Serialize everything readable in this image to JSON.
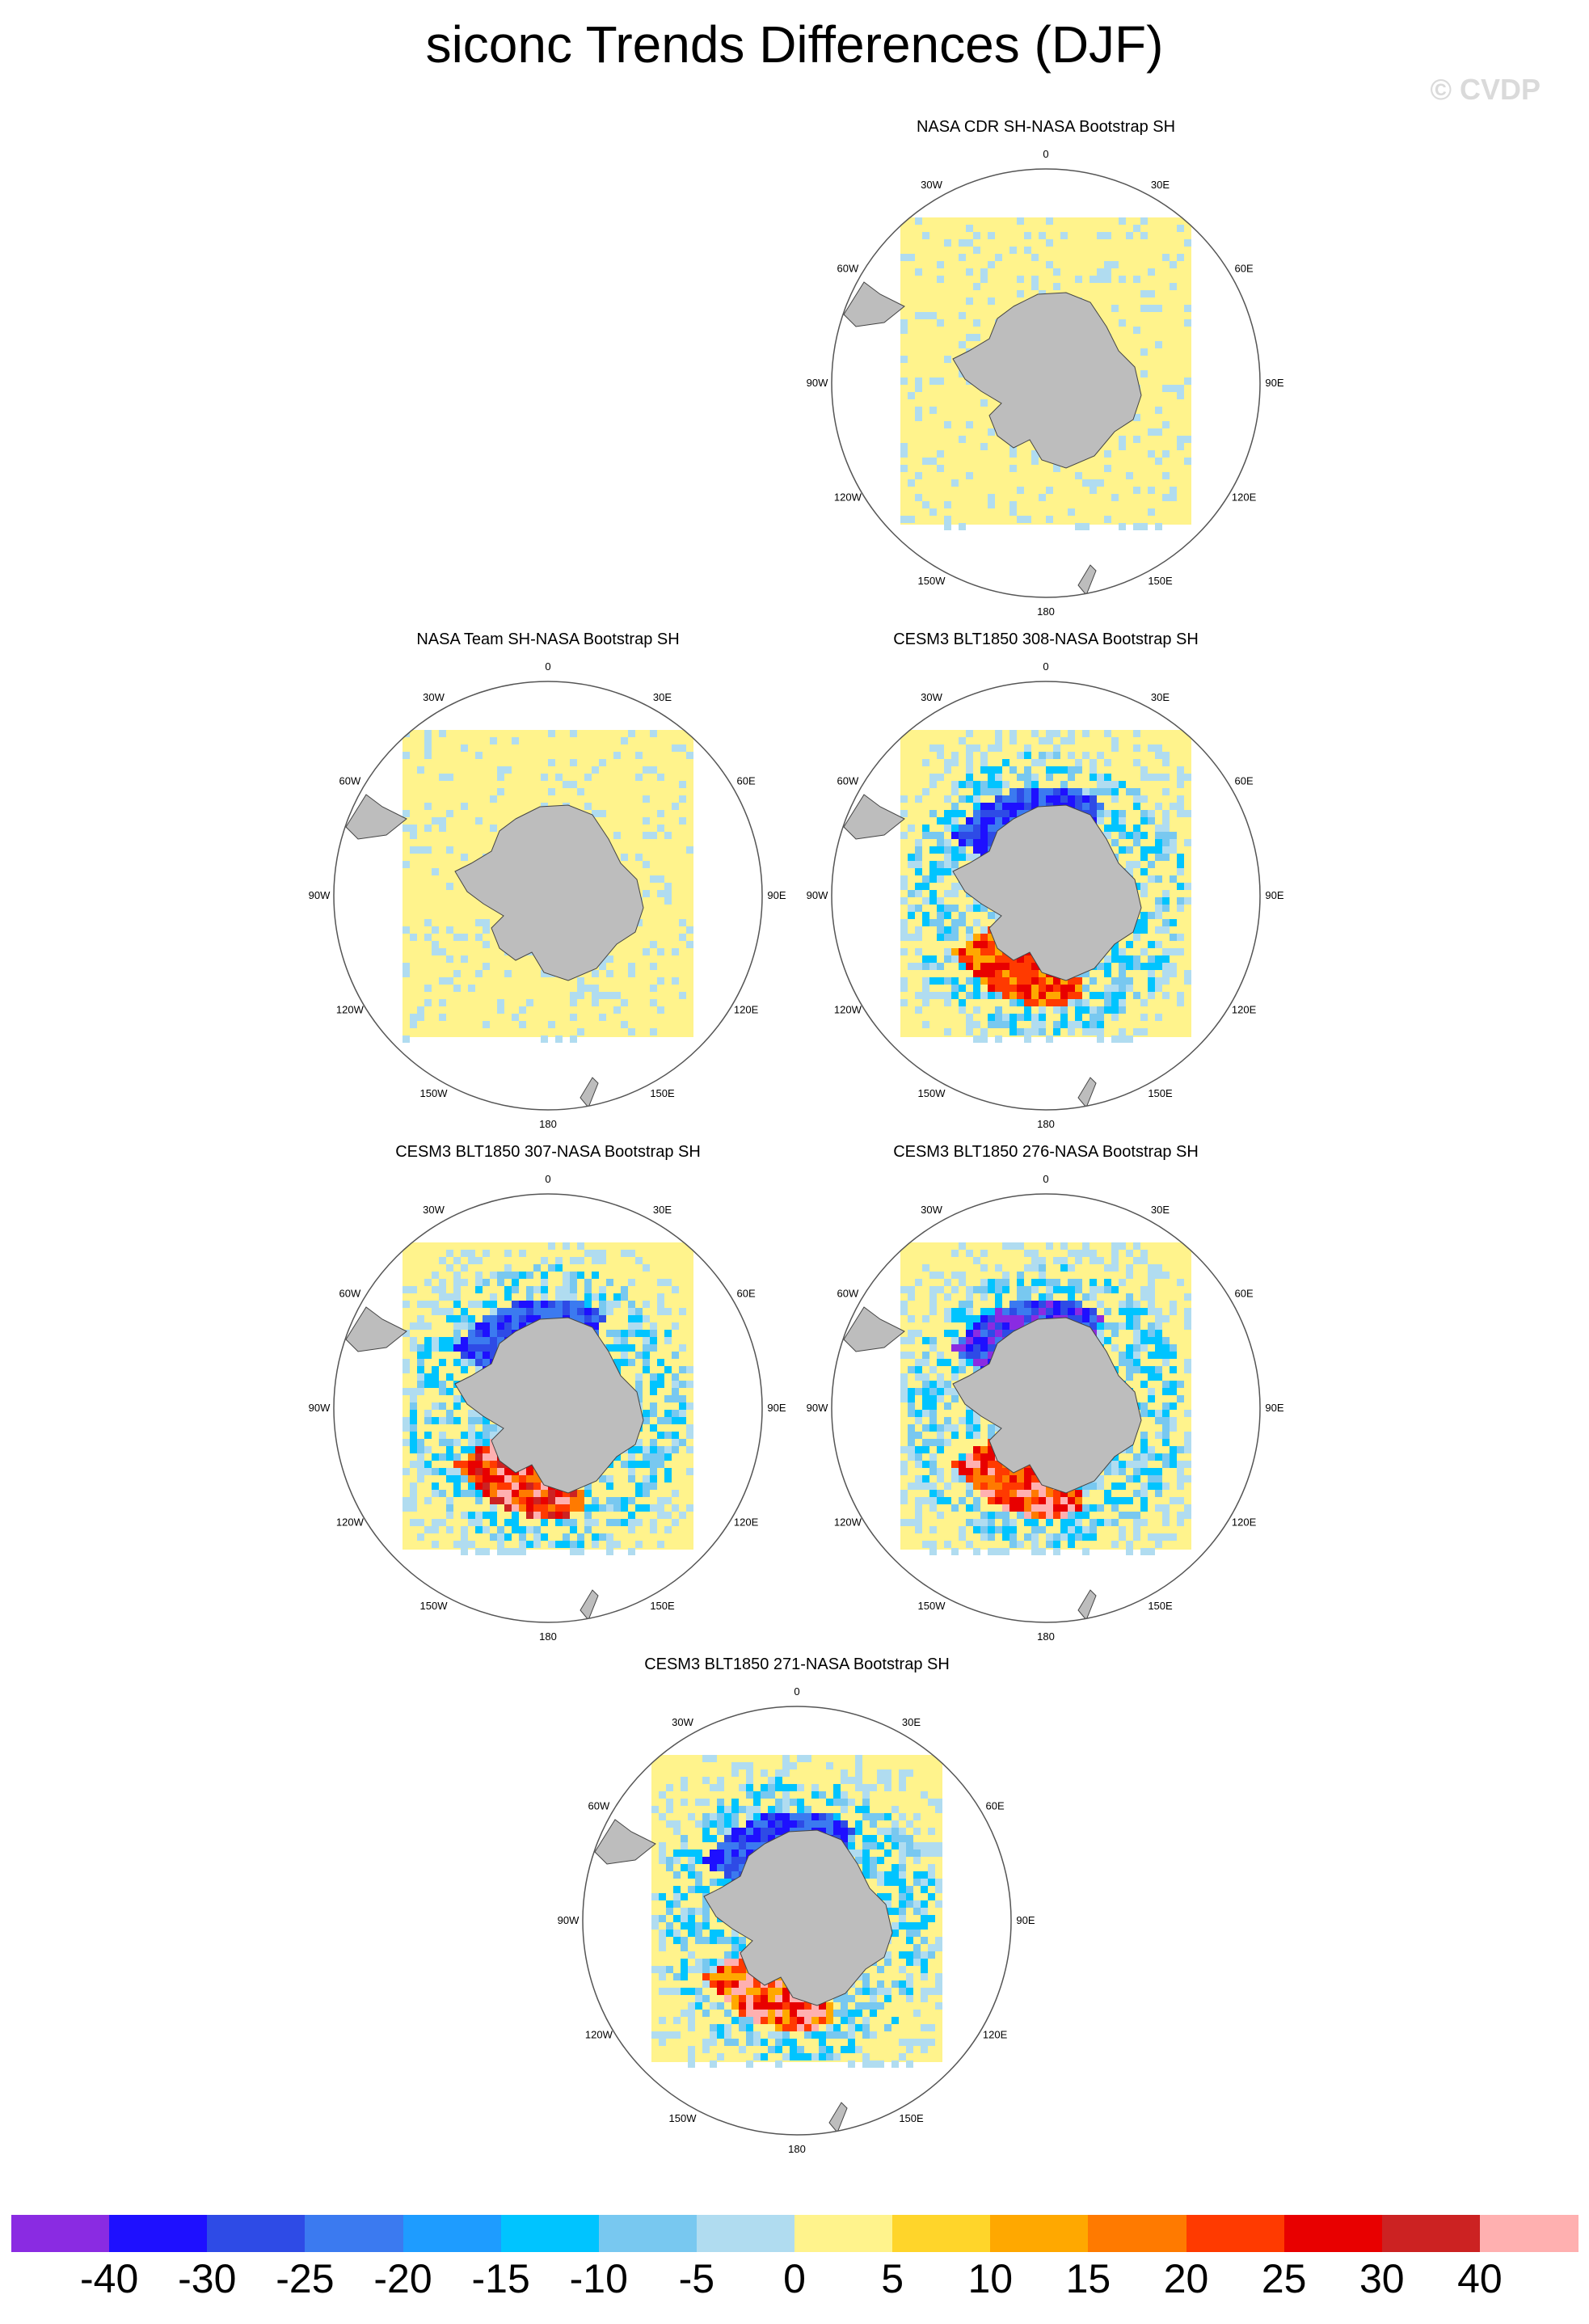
{
  "title": "siconc Trends Differences (DJF)",
  "watermark": "© CVDP",
  "chart_data": {
    "type": "heatmap",
    "title": "siconc Trends Differences (DJF)",
    "projection": "south-polar-stereographic",
    "variable": "siconc",
    "season": "DJF",
    "longitude_labels": [
      "0",
      "30E",
      "60E",
      "90E",
      "120E",
      "150E",
      "180",
      "150W",
      "120W",
      "90W",
      "60W",
      "30W"
    ],
    "panels": [
      {
        "title": "NASA CDR SH-NASA Bootstrap SH",
        "pattern": "near-zero, scattered light-blue (-5 to 0)"
      },
      {
        "title": "NASA Team SH-NASA Bootstrap SH",
        "pattern": "near-zero, scattered light-blue (-5 to 0)"
      },
      {
        "title": "CESM3 BLT1850 308-NASA Bootstrap SH",
        "pattern": "strong positive Ross/Amundsen, negative ring"
      },
      {
        "title": "CESM3 BLT1850 307-NASA Bootstrap SH",
        "pattern": "strong positive Ross/Amundsen, negative Weddell"
      },
      {
        "title": "CESM3 BLT1850 276-NASA Bootstrap SH",
        "pattern": "positive Ross, strong negative ring"
      },
      {
        "title": "CESM3 BLT1850 271-NASA Bootstrap SH",
        "pattern": "positive Ross, negative ring"
      }
    ],
    "colorbar": {
      "levels": [
        "-40",
        "-30",
        "-25",
        "-20",
        "-15",
        "-10",
        "-5",
        "0",
        "5",
        "10",
        "15",
        "20",
        "25",
        "30",
        "40"
      ],
      "colors": [
        "#8a2be2",
        "#1e10ff",
        "#2e4be6",
        "#3b7af0",
        "#1e9cff",
        "#00c4ff",
        "#78c8f0",
        "#b0dcf0",
        "#fff38c",
        "#ffd52a",
        "#ffa800",
        "#ff7a00",
        "#ff3a00",
        "#e80000",
        "#cc2222",
        "#ffb0b0"
      ]
    }
  }
}
